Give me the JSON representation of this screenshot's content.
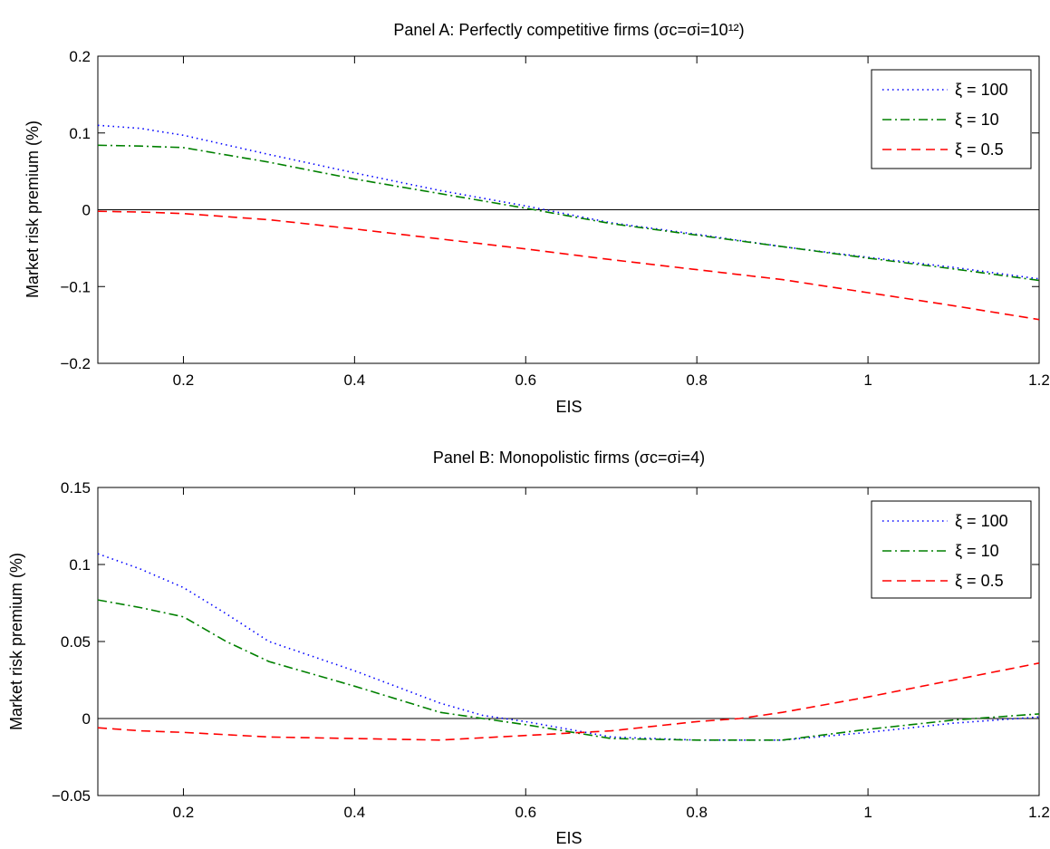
{
  "chart_data": [
    {
      "type": "line",
      "title": "Panel A: Perfectly competitive firms (σc=σi=10¹²)",
      "xlabel": "EIS",
      "ylabel": "Market risk premium (%)",
      "xlim": [
        0.1,
        1.2
      ],
      "ylim": [
        -0.2,
        0.2
      ],
      "xticks": [
        0.2,
        0.4,
        0.6,
        0.8,
        1,
        1.2
      ],
      "xtick_labels": [
        "0.2",
        "0.4",
        "0.6",
        "0.8",
        "1",
        "1.2"
      ],
      "yticks": [
        -0.2,
        -0.1,
        0,
        0.1,
        0.2
      ],
      "ytick_labels": [
        "−0.2",
        "−0.1",
        "0",
        "0.1",
        "0.2"
      ],
      "zero_line": true,
      "grid": false,
      "legend_position": "top-right",
      "series": [
        {
          "name": "ξ = 100",
          "color": "#0000ff",
          "style": "dotted",
          "x": [
            0.1,
            0.15,
            0.2,
            0.3,
            0.4,
            0.5,
            0.6,
            0.7,
            0.8,
            0.9,
            1.0,
            1.1,
            1.2
          ],
          "y": [
            0.11,
            0.106,
            0.097,
            0.072,
            0.048,
            0.025,
            0.005,
            -0.017,
            -0.032,
            -0.048,
            -0.062,
            -0.075,
            -0.09
          ]
        },
        {
          "name": "ξ = 10",
          "color": "#008000",
          "style": "dashdot",
          "x": [
            0.1,
            0.15,
            0.2,
            0.3,
            0.4,
            0.5,
            0.6,
            0.7,
            0.8,
            0.9,
            1.0,
            1.1,
            1.2
          ],
          "y": [
            0.084,
            0.083,
            0.081,
            0.062,
            0.04,
            0.021,
            0.002,
            -0.018,
            -0.033,
            -0.048,
            -0.063,
            -0.077,
            -0.092
          ]
        },
        {
          "name": "ξ = 0.5",
          "color": "#ff0000",
          "style": "dashed",
          "x": [
            0.1,
            0.15,
            0.2,
            0.3,
            0.4,
            0.5,
            0.6,
            0.7,
            0.8,
            0.9,
            1.0,
            1.1,
            1.2
          ],
          "y": [
            -0.002,
            -0.003,
            -0.005,
            -0.013,
            -0.025,
            -0.038,
            -0.051,
            -0.065,
            -0.078,
            -0.091,
            -0.108,
            -0.125,
            -0.143
          ]
        }
      ]
    },
    {
      "type": "line",
      "title": "Panel B: Monopolistic firms (σc=σi=4)",
      "xlabel": "EIS",
      "ylabel": "Market risk premium (%)",
      "xlim": [
        0.1,
        1.2
      ],
      "ylim": [
        -0.05,
        0.15
      ],
      "xticks": [
        0.2,
        0.4,
        0.6,
        0.8,
        1,
        1.2
      ],
      "xtick_labels": [
        "0.2",
        "0.4",
        "0.6",
        "0.8",
        "1",
        "1.2"
      ],
      "yticks": [
        -0.05,
        0,
        0.05,
        0.1,
        0.15
      ],
      "ytick_labels": [
        "−0.05",
        "0",
        "0.05",
        "0.1",
        "0.15"
      ],
      "zero_line": true,
      "grid": false,
      "legend_position": "top-right",
      "series": [
        {
          "name": "ξ = 100",
          "color": "#0000ff",
          "style": "dotted",
          "x": [
            0.1,
            0.15,
            0.2,
            0.25,
            0.3,
            0.4,
            0.5,
            0.55,
            0.6,
            0.7,
            0.8,
            0.9,
            1.0,
            1.1,
            1.2
          ],
          "y": [
            0.107,
            0.097,
            0.085,
            0.068,
            0.05,
            0.031,
            0.01,
            0.002,
            -0.002,
            -0.012,
            -0.014,
            -0.014,
            -0.009,
            -0.003,
            0.001
          ]
        },
        {
          "name": "ξ = 10",
          "color": "#008000",
          "style": "dashdot",
          "x": [
            0.1,
            0.15,
            0.2,
            0.25,
            0.3,
            0.4,
            0.5,
            0.55,
            0.6,
            0.7,
            0.8,
            0.9,
            1.0,
            1.1,
            1.2
          ],
          "y": [
            0.077,
            0.072,
            0.066,
            0.05,
            0.037,
            0.021,
            0.004,
            0.0,
            -0.004,
            -0.013,
            -0.014,
            -0.014,
            -0.007,
            -0.001,
            0.003
          ]
        },
        {
          "name": "ξ = 0.5",
          "color": "#ff0000",
          "style": "dashed",
          "x": [
            0.1,
            0.15,
            0.2,
            0.3,
            0.4,
            0.5,
            0.6,
            0.7,
            0.8,
            0.85,
            0.9,
            1.0,
            1.1,
            1.2
          ],
          "y": [
            -0.006,
            -0.008,
            -0.009,
            -0.012,
            -0.013,
            -0.014,
            -0.011,
            -0.008,
            -0.002,
            0.0,
            0.004,
            0.014,
            0.025,
            0.036
          ]
        }
      ]
    }
  ]
}
